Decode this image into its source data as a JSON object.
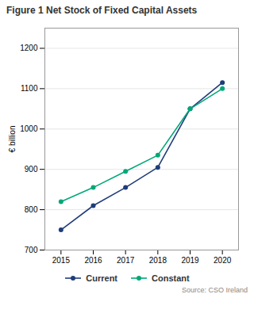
{
  "chart_data": {
    "type": "line",
    "title": "Figure 1 Net Stock of Fixed Capital Assets",
    "x": [
      2015,
      2016,
      2017,
      2018,
      2019,
      2020
    ],
    "series": [
      {
        "name": "Current",
        "color": "#1f3d7a",
        "values": [
          750,
          810,
          855,
          905,
          1050,
          1115
        ]
      },
      {
        "name": "Constant",
        "color": "#00a878",
        "values": [
          820,
          855,
          895,
          935,
          1050,
          1100
        ]
      }
    ],
    "ylabel": "€ billion",
    "xlim": [
      2014.5,
      2020.5
    ],
    "xticks": [
      2015,
      2016,
      2017,
      2018,
      2019,
      2020
    ],
    "ylim": [
      700,
      1250
    ],
    "yticks": [
      700,
      800,
      900,
      1000,
      1100,
      1200
    ],
    "grid": true,
    "legend": "bottom",
    "marker": "circle",
    "annotations": [
      "Source: CSO Ireland"
    ]
  }
}
